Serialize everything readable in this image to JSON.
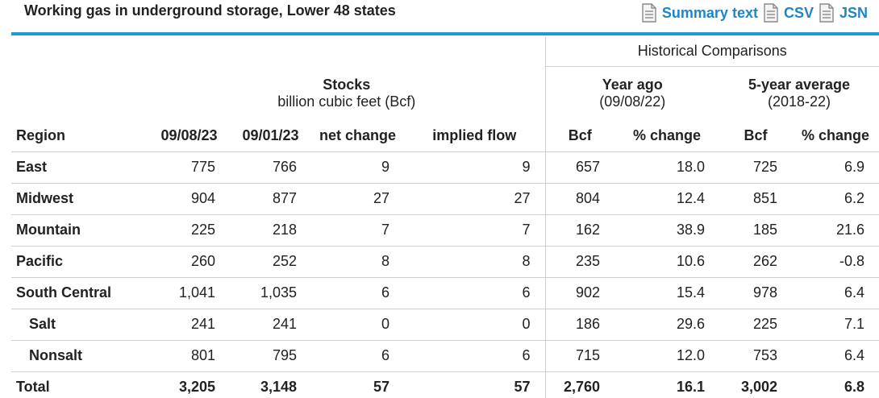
{
  "title": "Working gas in underground storage, Lower 48 states",
  "links": [
    {
      "label": "Summary text",
      "icon": "document-icon"
    },
    {
      "label": "CSV",
      "icon": "document-icon"
    },
    {
      "label": "JSN",
      "icon": "document-icon"
    }
  ],
  "accent_color": "#1d9ad6",
  "link_color": "#1d86c4",
  "header": {
    "historical": "Historical Comparisons",
    "stocks_title": "Stocks",
    "stocks_unit": "billion cubic feet (Bcf)",
    "year_ago_title": "Year ago",
    "year_ago_date": "(09/08/22)",
    "five_year_title": "5-year average",
    "five_year_range": "(2018-22)"
  },
  "columns": [
    "Region",
    "09/08/23",
    "09/01/23",
    "net change",
    "implied flow",
    "Bcf",
    "% change",
    "Bcf",
    "% change"
  ],
  "rows": [
    {
      "region": "East",
      "cells": [
        "775",
        "766",
        "9",
        "9",
        "657",
        "18.0",
        "725",
        "6.9"
      ]
    },
    {
      "region": "Midwest",
      "cells": [
        "904",
        "877",
        "27",
        "27",
        "804",
        "12.4",
        "851",
        "6.2"
      ]
    },
    {
      "region": "Mountain",
      "cells": [
        "225",
        "218",
        "7",
        "7",
        "162",
        "38.9",
        "185",
        "21.6"
      ]
    },
    {
      "region": "Pacific",
      "cells": [
        "260",
        "252",
        "8",
        "8",
        "235",
        "10.6",
        "262",
        "-0.8"
      ]
    },
    {
      "region": "South Central",
      "cells": [
        "1,041",
        "1,035",
        "6",
        "6",
        "902",
        "15.4",
        "978",
        "6.4"
      ]
    },
    {
      "region": "Salt",
      "cells": [
        "241",
        "241",
        "0",
        "0",
        "186",
        "29.6",
        "225",
        "7.1"
      ]
    },
    {
      "region": "Nonsalt",
      "cells": [
        "801",
        "795",
        "6",
        "6",
        "715",
        "12.0",
        "753",
        "6.4"
      ]
    },
    {
      "region": "Total",
      "cells": [
        "3,205",
        "3,148",
        "57",
        "57",
        "2,760",
        "16.1",
        "3,002",
        "6.8"
      ]
    }
  ]
}
